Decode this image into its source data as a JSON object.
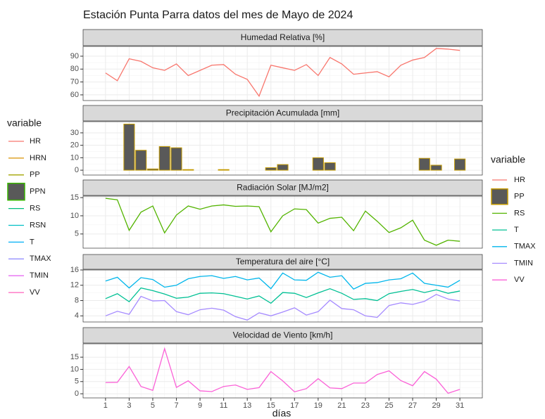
{
  "title": "Estación Punta Parra datos del mes de Mayo de 2024",
  "x_axis": {
    "label": "días",
    "lim": [
      -0.9,
      32.9
    ],
    "values": [
      1,
      2,
      3,
      4,
      5,
      6,
      7,
      8,
      9,
      10,
      11,
      12,
      13,
      14,
      15,
      16,
      17,
      18,
      19,
      20,
      21,
      22,
      23,
      24,
      25,
      26,
      27,
      28,
      29,
      30,
      31
    ],
    "ticks": [
      1,
      3,
      5,
      7,
      9,
      11,
      13,
      15,
      17,
      19,
      21,
      23,
      25,
      27,
      29,
      31
    ]
  },
  "legends": {
    "left": {
      "title": "variable",
      "entries": [
        {
          "name": "HR",
          "color": "#F8766D",
          "key": "line"
        },
        {
          "name": "HRN",
          "color": "#D89000",
          "key": "line"
        },
        {
          "name": "PP",
          "color": "#A3A500",
          "key": "line"
        },
        {
          "name": "PPN",
          "color": "#39B600",
          "key": "box"
        },
        {
          "name": "RS",
          "color": "#00BF7D",
          "key": "line"
        },
        {
          "name": "RSN",
          "color": "#00BFC4",
          "key": "line"
        },
        {
          "name": "T",
          "color": "#00B0F6",
          "key": "line"
        },
        {
          "name": "TMAX",
          "color": "#9590FF",
          "key": "line"
        },
        {
          "name": "TMIN",
          "color": "#E76BF3",
          "key": "line"
        },
        {
          "name": "VV",
          "color": "#FF62BC",
          "key": "line"
        }
      ]
    },
    "right": {
      "title": "variable"
    }
  },
  "chart_data": [
    {
      "type": "line",
      "title": "Humedad Relativa [%]",
      "ylim": [
        55.6,
        97.6
      ],
      "yticks": [
        60,
        70,
        80,
        90
      ],
      "grid": true,
      "series": [
        {
          "name": "HR",
          "color": "#F8766D",
          "values": [
            77,
            71,
            88,
            86,
            81,
            79,
            84,
            75,
            79,
            83,
            83.5,
            76,
            72,
            59,
            83,
            81,
            79,
            83.5,
            75,
            89,
            84,
            76,
            77,
            78,
            74,
            83,
            87,
            89,
            96,
            95.5,
            94.5
          ]
        }
      ]
    },
    {
      "type": "bar",
      "title": "Precipitación Acumulada [mm]",
      "ylim": [
        -3.9,
        39
      ],
      "yticks": [
        0,
        10,
        20,
        30
      ],
      "grid": true,
      "fill": "#595959",
      "series": [
        {
          "name": "PP",
          "color": "#C49A00",
          "values": [
            0,
            0,
            37,
            16,
            1,
            19,
            18,
            0.5,
            0,
            0,
            0.5,
            0,
            0,
            0,
            2,
            4.5,
            0,
            0,
            10,
            6,
            0,
            0,
            0,
            0,
            0,
            0,
            0,
            9.5,
            4,
            0,
            9
          ]
        }
      ]
    },
    {
      "type": "line",
      "title": "Radiación Solar [MJ/m2]",
      "ylim": [
        1.1,
        15.4
      ],
      "yticks": [
        5,
        10,
        15
      ],
      "grid": true,
      "series": [
        {
          "name": "RS",
          "color": "#53B400",
          "values": [
            14.8,
            14.4,
            6,
            11,
            12.7,
            5.3,
            10.2,
            12.7,
            11.8,
            12.7,
            13,
            12.6,
            12.7,
            12.5,
            5.6,
            10,
            11.9,
            11.7,
            8,
            9.3,
            9.6,
            5.9,
            11.3,
            8.5,
            5.4,
            6.7,
            8.8,
            3.3,
            1.9,
            3.3,
            3.0
          ]
        }
      ]
    },
    {
      "type": "line",
      "title": "Temperatura del aire [°C]",
      "ylim": [
        2.4,
        16.0
      ],
      "yticks": [
        4,
        8,
        12,
        16
      ],
      "grid": true,
      "series": [
        {
          "name": "T",
          "color": "#00C094",
          "values": [
            8.5,
            9.8,
            7.7,
            11.3,
            10.6,
            9.7,
            8.6,
            8.9,
            9.9,
            10,
            9.8,
            9.1,
            8.4,
            9.2,
            7.3,
            10.1,
            9.9,
            8.8,
            10,
            11.1,
            9.9,
            8.3,
            8.5,
            8,
            9.8,
            10.4,
            10.9,
            10.1,
            10.8,
            9.9,
            10.5
          ]
        },
        {
          "name": "TMAX",
          "color": "#00B6EB",
          "values": [
            13.1,
            14.1,
            11.3,
            14,
            13.5,
            11.5,
            12,
            13.7,
            14.3,
            14.5,
            13.8,
            14.3,
            13.4,
            13.9,
            11.1,
            15.2,
            13.4,
            13.3,
            15.4,
            14.1,
            14.5,
            11,
            12.5,
            12.7,
            13.4,
            13.7,
            15.2,
            12.5,
            12,
            11.5,
            13.3
          ]
        },
        {
          "name": "TMIN",
          "color": "#A58AFF",
          "values": [
            4,
            5.2,
            4.4,
            9.1,
            7.9,
            8,
            5.1,
            4.3,
            5.6,
            6,
            5.5,
            3.8,
            2.9,
            4.8,
            4,
            5,
            6.1,
            4.2,
            5.1,
            8.1,
            5.9,
            5.6,
            4,
            3.6,
            6.7,
            7.4,
            7,
            7.8,
            9.6,
            8.4,
            7.9
          ]
        }
      ]
    },
    {
      "type": "line",
      "title": "Velocidad de Viento [km/h]",
      "ylim": [
        -1.7,
        20.5
      ],
      "yticks": [
        0,
        5,
        10,
        15
      ],
      "grid": true,
      "series": [
        {
          "name": "VV",
          "color": "#FB61D7",
          "values": [
            4.6,
            4.7,
            11.2,
            3,
            1.4,
            18.5,
            2.6,
            5.3,
            1.2,
            0.9,
            3,
            3.6,
            1.8,
            2.5,
            9.1,
            5.3,
            0.8,
            2.1,
            6.2,
            2.4,
            2.1,
            4.4,
            4.4,
            7.9,
            9.4,
            5.4,
            3.3,
            9.1,
            6,
            0.2,
            1.8
          ]
        }
      ]
    }
  ]
}
